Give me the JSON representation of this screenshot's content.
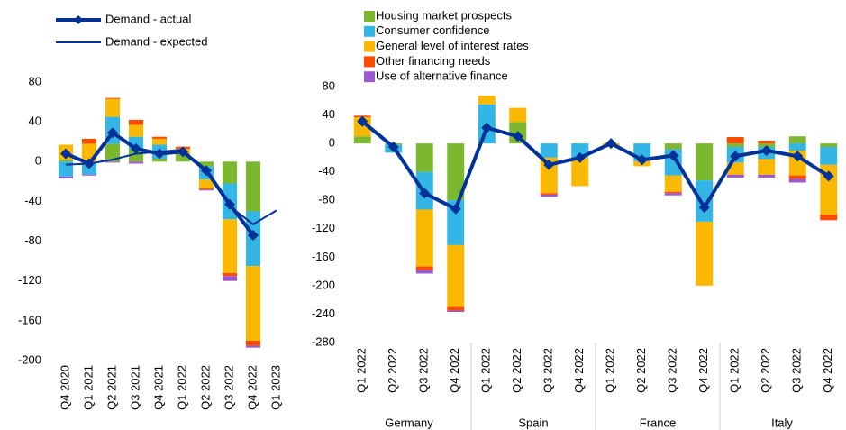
{
  "chart_data": [
    {
      "type": "bar",
      "categories": [
        "Q4 2020",
        "Q1 2021",
        "Q2 2021",
        "Q3 2021",
        "Q4 2021",
        "Q1 2022",
        "Q2 2022",
        "Q3 2022",
        "Q4 2022",
        "Q1 2023"
      ],
      "ylim": [
        -200,
        80
      ],
      "yticks": [
        80,
        40,
        0,
        -40,
        -80,
        -120,
        -160,
        -200
      ],
      "series": [
        {
          "color": "#7cb82f",
          "values": [
            2,
            0,
            18,
            12,
            3,
            8,
            -5,
            -22,
            -50,
            null
          ]
        },
        {
          "color": "#33b5e5",
          "values": [
            -15,
            -13,
            27,
            13,
            14,
            0,
            -13,
            -36,
            -55,
            null
          ]
        },
        {
          "color": "#fbb800",
          "values": [
            15,
            18,
            18,
            12,
            6,
            5,
            -9,
            -54,
            -75,
            null
          ]
        },
        {
          "color": "#ff4b00",
          "values": [
            0,
            5,
            1,
            5,
            2,
            2,
            -1,
            -3,
            -5,
            null
          ]
        },
        {
          "color": "#9b59d0",
          "values": [
            -2,
            -1,
            -1,
            -2,
            0,
            0,
            -1,
            -5,
            -2,
            null
          ]
        },
        {
          "type": "line",
          "name": "Demand - actual",
          "color": "#003299",
          "markers": true,
          "values": [
            8,
            -2,
            29,
            13,
            8,
            10,
            -9,
            -43,
            -74,
            null
          ]
        },
        {
          "type": "line",
          "name": "Demand - expected",
          "color": "#003299",
          "markers": false,
          "values": [
            -3,
            -2,
            2,
            8,
            10,
            12,
            -10,
            -45,
            -63,
            -49
          ]
        }
      ]
    },
    {
      "type": "bar",
      "groups": [
        "Germany",
        "Spain",
        "France",
        "Italy"
      ],
      "categories": [
        "Q1 2022",
        "Q2 2022",
        "Q3 2022",
        "Q4 2022",
        "Q1 2022",
        "Q2 2022",
        "Q3 2022",
        "Q4 2022",
        "Q1 2022",
        "Q2 2022",
        "Q3 2022",
        "Q4 2022",
        "Q1 2022",
        "Q2 2022",
        "Q3 2022",
        "Q4 2022"
      ],
      "ylim": [
        -280,
        80
      ],
      "yticks": [
        80,
        40,
        0,
        -40,
        -80,
        -120,
        -160,
        -200,
        -240,
        -280
      ],
      "series": [
        {
          "type": "bar",
          "name": "Housing market prospects",
          "color": "#7cb82f",
          "values": [
            10,
            -2,
            -40,
            -80,
            0,
            30,
            0,
            0,
            0,
            0,
            -8,
            -52,
            -5,
            -5,
            10,
            -5
          ]
        },
        {
          "type": "bar",
          "name": "Consumer confidence",
          "color": "#33b5e5",
          "values": [
            0,
            -11,
            -53,
            -63,
            55,
            0,
            -20,
            -20,
            0,
            -25,
            -37,
            -58,
            -22,
            -17,
            -10,
            -25
          ]
        },
        {
          "type": "bar",
          "name": "General level of interest rates",
          "color": "#fbb800",
          "values": [
            27,
            0,
            -80,
            -87,
            12,
            20,
            -50,
            -40,
            -5,
            -7,
            -23,
            -90,
            -17,
            -22,
            -35,
            -70
          ]
        },
        {
          "type": "bar",
          "name": "Other financing needs",
          "color": "#ff4b00",
          "values": [
            2,
            0,
            -5,
            -5,
            0,
            0,
            -2,
            0,
            0,
            0,
            -2,
            0,
            9,
            4,
            -5,
            -8
          ]
        },
        {
          "type": "bar",
          "name": "Use of alternative finance",
          "color": "#9b59d0",
          "values": [
            0,
            0,
            -5,
            -2,
            0,
            0,
            -3,
            0,
            0,
            0,
            -3,
            0,
            -4,
            -4,
            -5,
            0
          ]
        },
        {
          "type": "line",
          "color": "#003299",
          "markers": true,
          "values": [
            31,
            -5,
            -70,
            -92,
            22,
            10,
            -30,
            -20,
            0,
            -23,
            -17,
            -90,
            -18,
            -10,
            -18,
            -46
          ]
        }
      ]
    }
  ]
}
